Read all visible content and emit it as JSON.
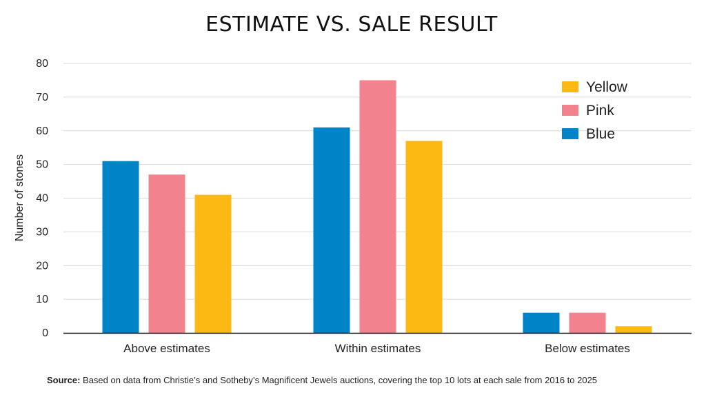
{
  "chart_data": {
    "type": "bar",
    "title": "ESTIMATE VS. SALE RESULT",
    "ylabel": "Number of stones",
    "xlabel": "",
    "categories": [
      "Above estimates",
      "Within estimates",
      "Below estimates"
    ],
    "series": [
      {
        "name": "Blue",
        "color": "#0084c8",
        "values": [
          51,
          61,
          6
        ]
      },
      {
        "name": "Pink",
        "color": "#f2828e",
        "values": [
          47,
          75,
          6
        ]
      },
      {
        "name": "Yellow",
        "color": "#fdb913",
        "values": [
          41,
          57,
          2
        ]
      }
    ],
    "legend_order": [
      "Yellow",
      "Pink",
      "Blue"
    ],
    "ylim": [
      0,
      80
    ],
    "yticks": [
      0,
      10,
      20,
      30,
      40,
      50,
      60,
      70,
      80
    ],
    "grid": true,
    "legend_position": "top-right"
  },
  "source": {
    "label": "Source:",
    "text": " Based on data from Christie’s and Sotheby’s Magnificent Jewels auctions, covering the top 10 lots at each sale from 2016 to 2025"
  }
}
